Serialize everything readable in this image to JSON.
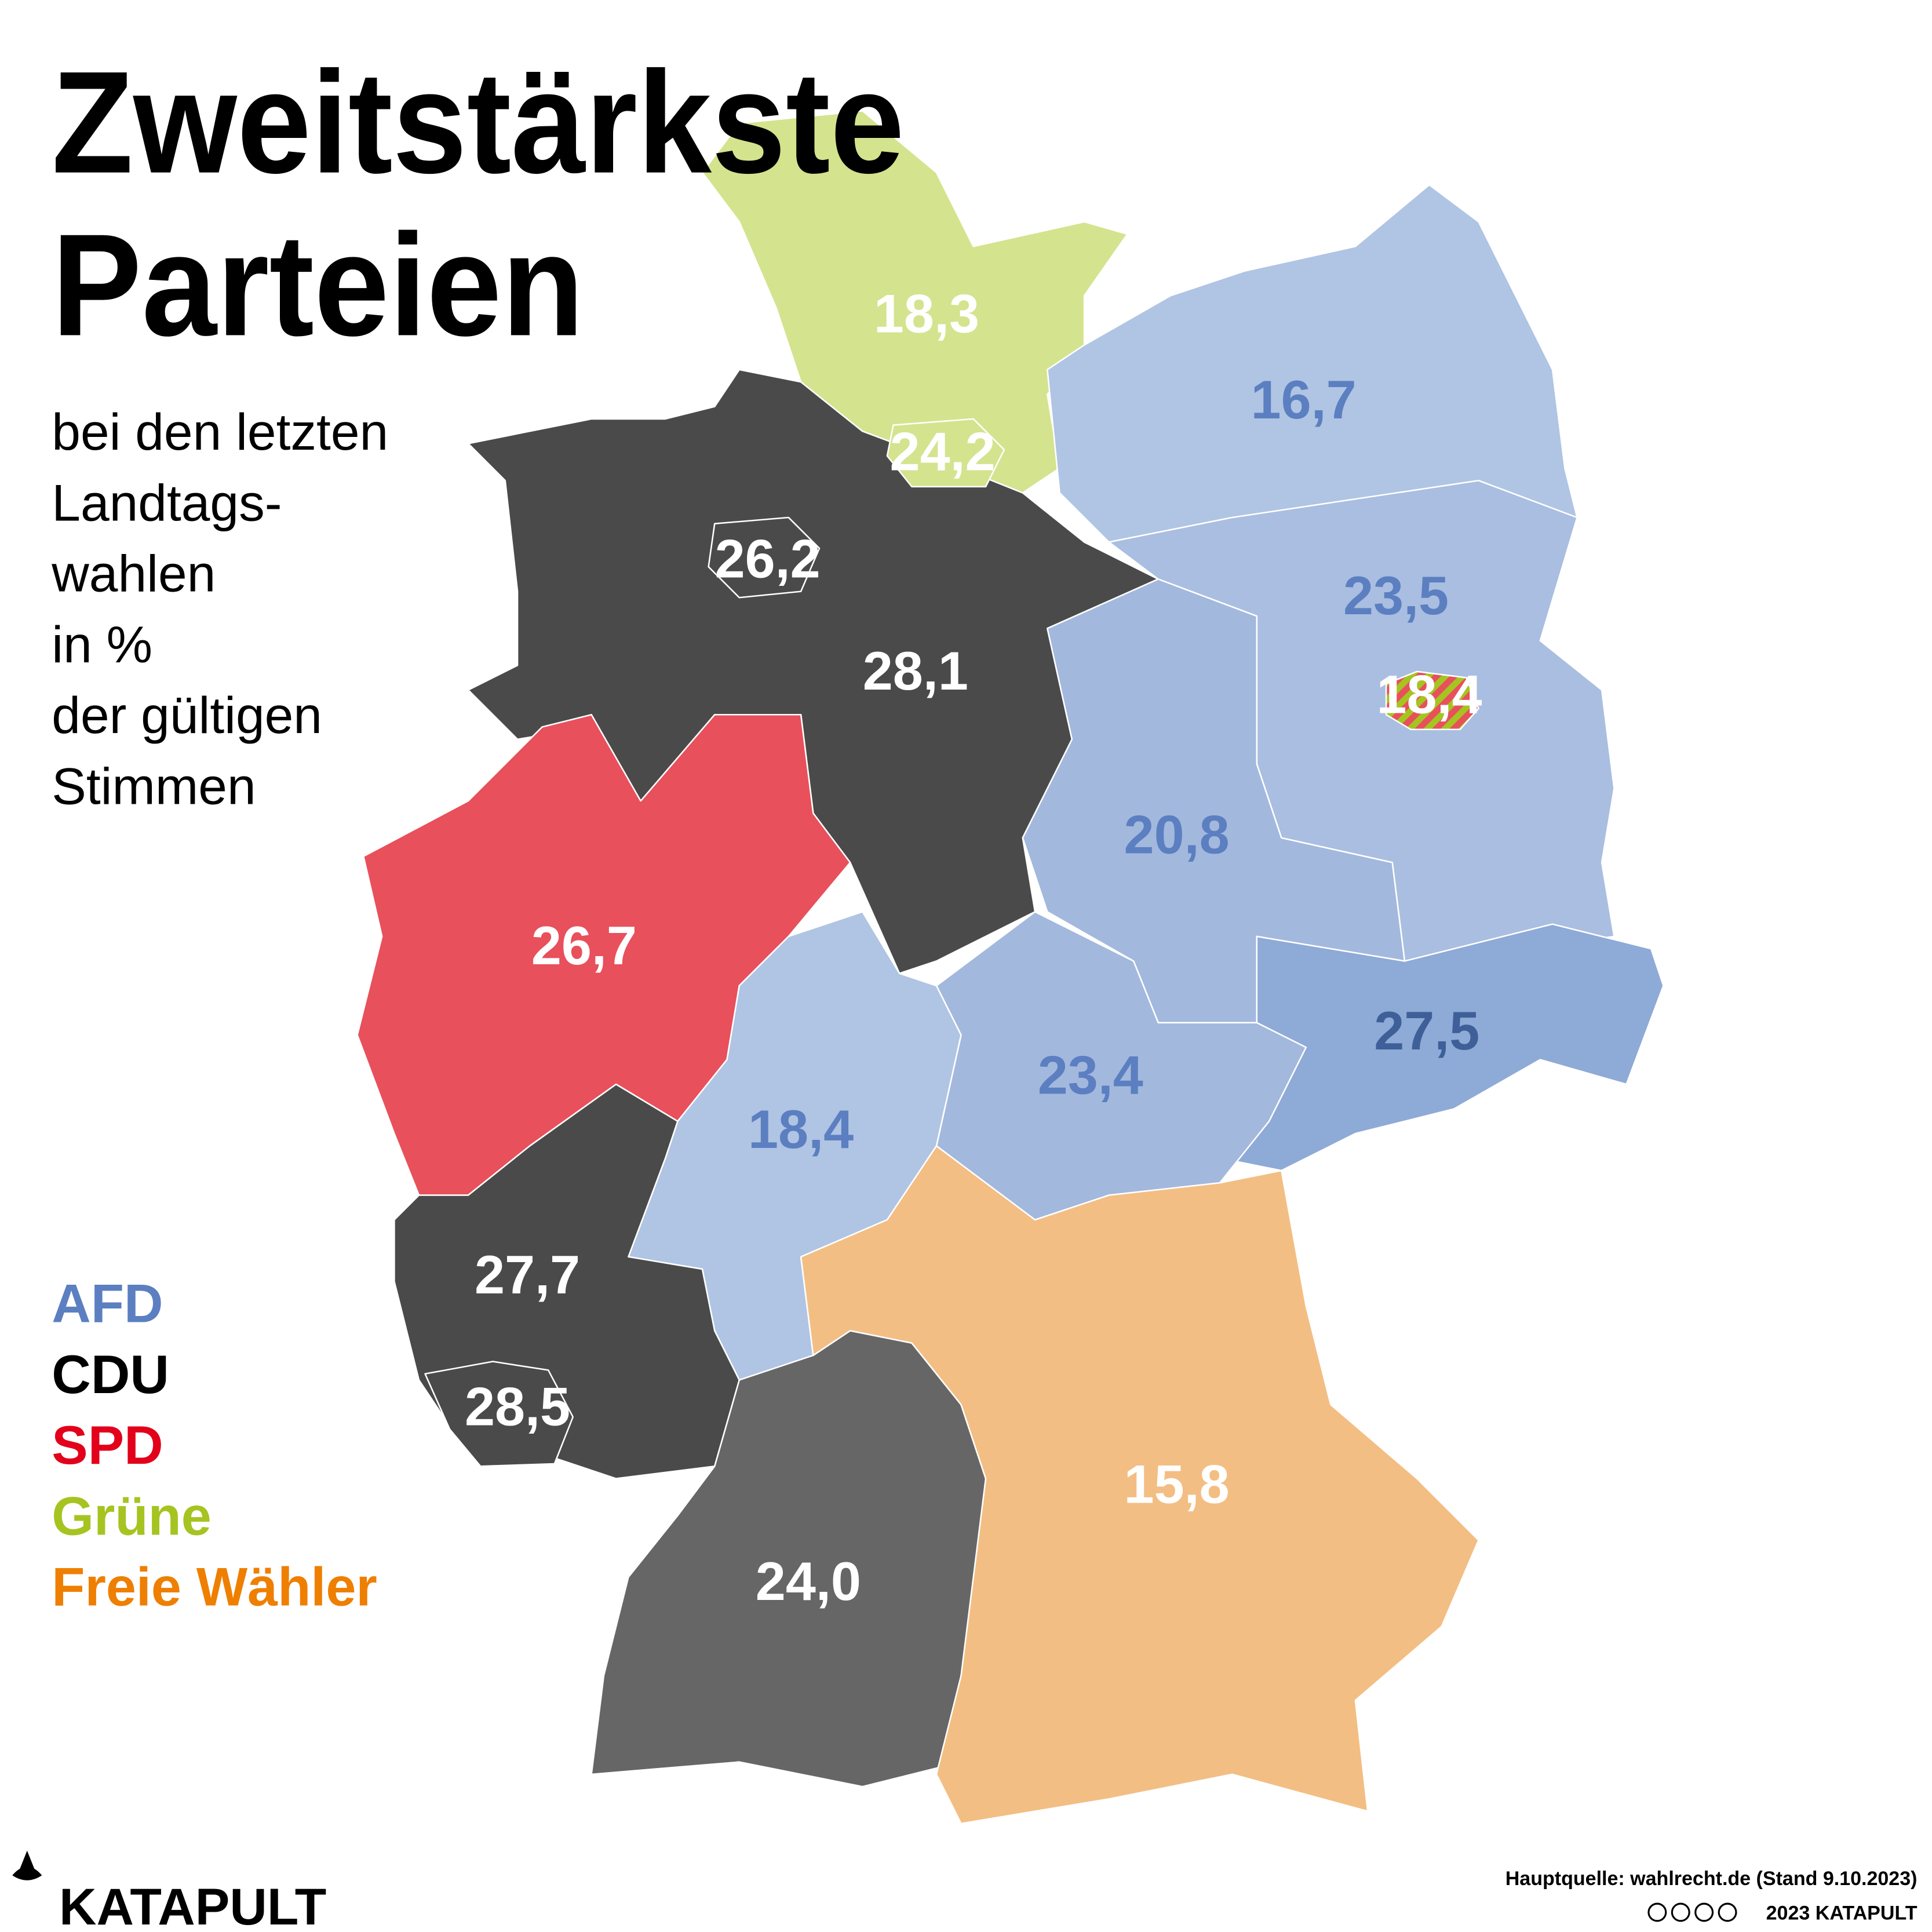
{
  "title": [
    "Zweitstärkste",
    "Parteien"
  ],
  "subtitle": [
    "bei den letzten",
    "Landtags-",
    "wahlen",
    "in %",
    "der gültigen",
    "Stimmen"
  ],
  "legend": [
    {
      "label": "AFD",
      "color": "#5b7fc0"
    },
    {
      "label": "CDU",
      "color": "#000000"
    },
    {
      "label": "SPD",
      "color": "#e2001a"
    },
    {
      "label": "Grüne",
      "color": "#a5c421"
    },
    {
      "label": "Freie Wähler",
      "color": "#ee7f00"
    }
  ],
  "regions": [
    {
      "label": "18,3",
      "color": "#d4e38e",
      "label_color": "#ffffff"
    },
    {
      "label": "24,2",
      "color": "#d4e38e",
      "label_color": "#ffffff"
    },
    {
      "label": "16,7",
      "color": "#b0c4e3",
      "label_color": "#5b7fc0"
    },
    {
      "label": "23,5",
      "color": "#a9bee0",
      "label_color": "#5b7fc0"
    },
    {
      "label": "18,4",
      "color": "#a5c421",
      "label_color": "#ffffff"
    },
    {
      "label": "28,1",
      "color": "#4a4a4a",
      "label_color": "#ffffff"
    },
    {
      "label": "26,2",
      "color": "#4a4a4a",
      "label_color": "#ffffff"
    },
    {
      "label": "20,8",
      "color": "#a3b8dd",
      "label_color": "#5b7fc0"
    },
    {
      "label": "26,7",
      "color": "#e8505b",
      "label_color": "#ffffff"
    },
    {
      "label": "27,5",
      "color": "#8eaad6",
      "label_color": "#3e5f98"
    },
    {
      "label": "23,4",
      "color": "#a3b8dd",
      "label_color": "#5b7fc0"
    },
    {
      "label": "18,4",
      "color": "#b0c4e3",
      "label_color": "#5b7fc0"
    },
    {
      "label": "27,7",
      "color": "#4a4a4a",
      "label_color": "#ffffff"
    },
    {
      "label": "28,5",
      "color": "#4a4a4a",
      "label_color": "#ffffff"
    },
    {
      "label": "24,0",
      "color": "#666666",
      "label_color": "#ffffff"
    },
    {
      "label": "15,8",
      "color": "#f3be83",
      "label_color": "#ffffff"
    }
  ],
  "source": "Hauptquelle: wahlrecht.de (Stand 9.10.2023)",
  "credit": "2023 KATAPULT",
  "logo": "KATAPULT"
}
